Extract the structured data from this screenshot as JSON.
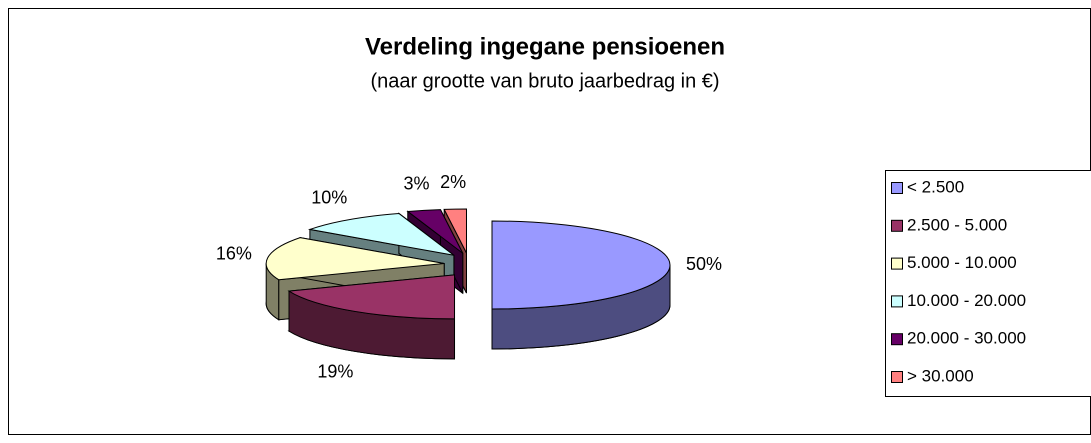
{
  "chart_data": {
    "type": "pie3d",
    "title": "Verdeling ingegane pensioenen",
    "subtitle": "(naar grootte van bruto jaarbedrag in €)",
    "categories": [
      "< 2.500",
      "2.500 - 5.000",
      "5.000 - 10.000",
      "10.000 - 20.000",
      "20.000 - 30.000",
      "> 30.000"
    ],
    "values": [
      50,
      19,
      16,
      10,
      3,
      2
    ],
    "value_labels": [
      "50%",
      "19%",
      "16%",
      "10%",
      "3%",
      "2%"
    ],
    "colors": [
      "#9999ff",
      "#993366",
      "#ffffcc",
      "#ccffff",
      "#660066",
      "#ff8080"
    ],
    "legend": "right"
  }
}
